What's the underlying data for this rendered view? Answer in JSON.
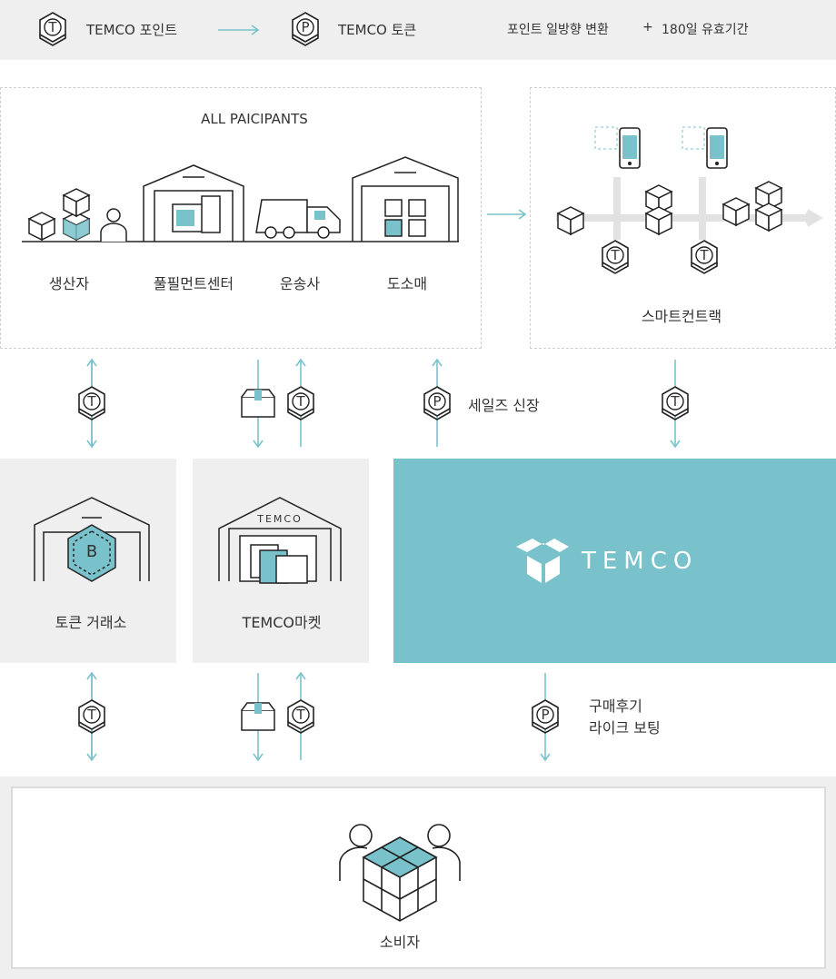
{
  "top_bar": {
    "point_label": "TEMCO 포인트",
    "token_label": "TEMCO 토큰",
    "note_text": "포인트 일방향 변환",
    "plus_sign": "+",
    "validity_text": "180일 유효기간"
  },
  "participants": {
    "heading": "ALL PAICIPANTS",
    "items": [
      "생산자",
      "풀필먼트센터",
      "운송사",
      "도소매"
    ]
  },
  "smart_contract": {
    "label": "스마트컨트랙"
  },
  "sales_growth": {
    "label": "세일즈 신장"
  },
  "exchange": {
    "label": "토큰 거래소",
    "badge": "B"
  },
  "market": {
    "label": "TEMCO마켓",
    "sign": "TEMCO"
  },
  "brand": {
    "name": "TEMCO"
  },
  "review": {
    "line1": "구매후기",
    "line2": "라이크 보팅"
  },
  "consumer": {
    "label": "소비자"
  },
  "icon_letters": {
    "token": "T",
    "point": "P"
  },
  "colors": {
    "accent": "#79c2cb",
    "panel": "#efefef",
    "stroke": "#222222",
    "arrow": "#79c2cb"
  }
}
